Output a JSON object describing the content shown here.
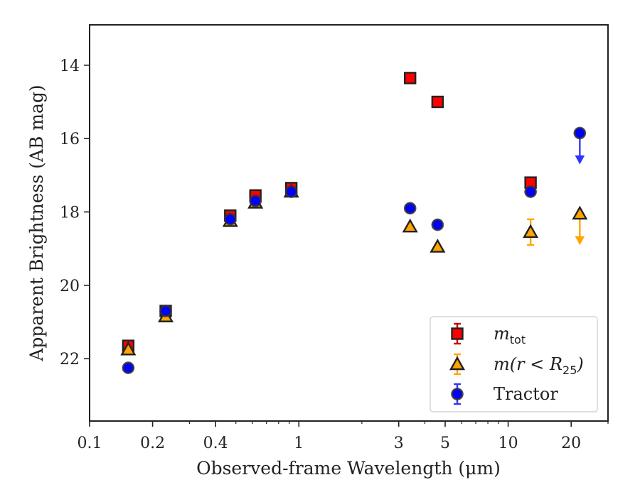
{
  "chart_data": {
    "type": "scatter",
    "xlabel": "Observed-frame Wavelength (μm)",
    "ylabel": "Apparent Brightness (AB mag)",
    "xscale": "log",
    "xlim": [
      0.1,
      30
    ],
    "ylim": [
      23.7,
      12.9
    ],
    "y_inverted": true,
    "xticks": [
      {
        "value": 0.1,
        "label": "0.1"
      },
      {
        "value": 0.2,
        "label": "0.2"
      },
      {
        "value": 0.4,
        "label": "0.4"
      },
      {
        "value": 1,
        "label": "1"
      },
      {
        "value": 3,
        "label": "3"
      },
      {
        "value": 5,
        "label": "5"
      },
      {
        "value": 10,
        "label": "10"
      },
      {
        "value": 20,
        "label": "20"
      }
    ],
    "yticks": [
      {
        "value": 14,
        "label": "14"
      },
      {
        "value": 16,
        "label": "16"
      },
      {
        "value": 18,
        "label": "18"
      },
      {
        "value": 20,
        "label": "20"
      },
      {
        "value": 22,
        "label": "22"
      }
    ],
    "grid": false,
    "legend_position": "lower-right",
    "series": [
      {
        "name": "m_tot",
        "legend_main": "m",
        "legend_sub": "tot",
        "legend_tail": "",
        "marker": "square",
        "color": "#ff0000",
        "error_color": "#cc0000",
        "points": [
          {
            "x": 0.153,
            "y": 21.65,
            "err": 0.1
          },
          {
            "x": 0.231,
            "y": 20.7,
            "err": 0.08
          },
          {
            "x": 0.47,
            "y": 18.1,
            "err": 0.08
          },
          {
            "x": 0.62,
            "y": 17.55,
            "err": 0.08
          },
          {
            "x": 0.92,
            "y": 17.35,
            "err": 0.08
          },
          {
            "x": 3.4,
            "y": 14.35,
            "err": 0.05
          },
          {
            "x": 4.6,
            "y": 15.0,
            "err": 0.05
          },
          {
            "x": 12.8,
            "y": 17.2,
            "err": 0.1
          }
        ]
      },
      {
        "name": "m(r<R_25)",
        "legend_main": "m(r < R",
        "legend_sub": "25",
        "legend_tail": ")",
        "marker": "triangle",
        "color": "#ffa500",
        "error_color": "#ffa500",
        "points": [
          {
            "x": 0.153,
            "y": 21.75,
            "err": 0.0
          },
          {
            "x": 0.231,
            "y": 20.85,
            "err": 0.0
          },
          {
            "x": 0.47,
            "y": 18.25,
            "err": 0.0
          },
          {
            "x": 0.62,
            "y": 17.75,
            "err": 0.0
          },
          {
            "x": 0.92,
            "y": 17.45,
            "err": 0.0
          },
          {
            "x": 3.4,
            "y": 18.4,
            "err": 0.0
          },
          {
            "x": 4.6,
            "y": 18.95,
            "err": 0.0
          },
          {
            "x": 12.8,
            "y": 18.55,
            "err": 0.35
          },
          {
            "x": 22.0,
            "y": 18.05,
            "err": 0.0,
            "upper_limit": true
          }
        ]
      },
      {
        "name": "Tractor",
        "legend_main": "Tractor",
        "legend_sub": "",
        "legend_tail": "",
        "marker": "circle",
        "color": "#0000ff",
        "error_color": "#3333ff",
        "points": [
          {
            "x": 0.153,
            "y": 22.25,
            "err": 0.0
          },
          {
            "x": 0.231,
            "y": 20.7,
            "err": 0.0
          },
          {
            "x": 0.47,
            "y": 18.2,
            "err": 0.0
          },
          {
            "x": 0.62,
            "y": 17.7,
            "err": 0.0
          },
          {
            "x": 0.92,
            "y": 17.45,
            "err": 0.0
          },
          {
            "x": 3.4,
            "y": 17.9,
            "err": 0.0
          },
          {
            "x": 4.6,
            "y": 18.35,
            "err": 0.0
          },
          {
            "x": 12.8,
            "y": 17.45,
            "err": 0.0
          },
          {
            "x": 22.0,
            "y": 15.85,
            "err": 0.0,
            "upper_limit": true
          }
        ]
      }
    ]
  }
}
